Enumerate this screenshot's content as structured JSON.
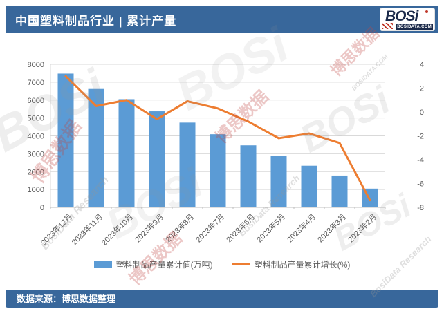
{
  "header": {
    "title": "中国塑料制品行业 | 累计产量"
  },
  "logo": {
    "text": "BOSi",
    "domain": "BOSIDATA.COM"
  },
  "footer": {
    "source": "数据来源：博思数据整理"
  },
  "watermarks": {
    "logo_text": "BOSi",
    "cn_text": "博思数据",
    "research_text": "BosiData Research",
    "domain_text": "BOSIDATA.COM"
  },
  "colors": {
    "header_bg": "#38679B",
    "bar": "#5B9BD5",
    "line": "#ED7D31",
    "grid": "#D9D9D9",
    "axis": "#BFBFBF",
    "axis_text": "#595959"
  },
  "chart_data": {
    "type": "bar",
    "subtype": "bar-line-combo",
    "title": "中国塑料制品行业 | 累计产量",
    "xlabel": "",
    "ylabel_left": "塑料制品产量累计值(万吨)",
    "ylabel_right": "塑料制品产量累计增长(%)",
    "grid": true,
    "legend_position": "bottom",
    "categories": [
      "2023年12月",
      "2023年11月",
      "2023年10月",
      "2023年9月",
      "2023年8月",
      "2023年7月",
      "2023年6月",
      "2023年5月",
      "2023年4月",
      "2023年3月",
      "2023年2月"
    ],
    "series": [
      {
        "name": "塑料制品产量累计值(万吨)",
        "type": "bar",
        "axis": "left",
        "color": "#5B9BD5",
        "values": [
          7480,
          6620,
          6050,
          5370,
          4740,
          4090,
          3470,
          2880,
          2330,
          1780,
          1050
        ]
      },
      {
        "name": "塑料制品产量累计增长(%)",
        "type": "line",
        "axis": "right",
        "color": "#ED7D31",
        "values": [
          3.0,
          0.5,
          1.0,
          -0.6,
          0.9,
          0.3,
          -0.8,
          -2.2,
          -1.8,
          -2.6,
          -7.4
        ]
      }
    ],
    "left_axis": {
      "min": 0,
      "max": 8000,
      "step": 1000
    },
    "right_axis": {
      "min": -8,
      "max": 4,
      "step": 2
    }
  }
}
